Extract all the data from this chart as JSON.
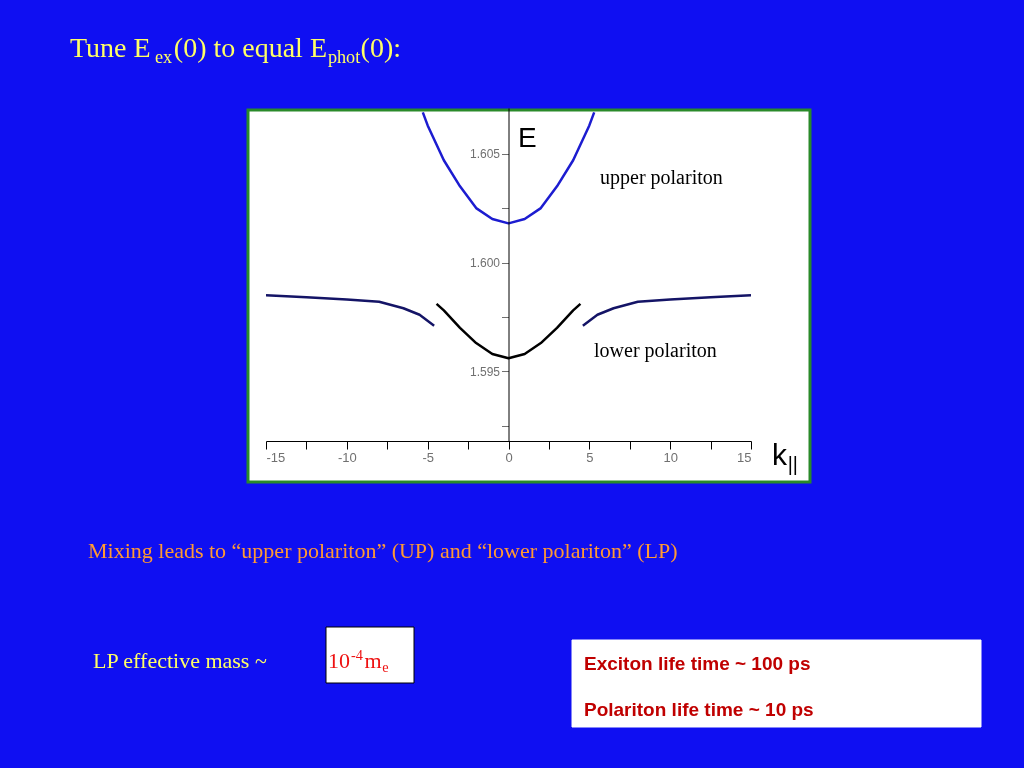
{
  "chart_data": {
    "type": "line",
    "title": "Tune E$_{ex}$(0) to equal E$_{phot}$(0):",
    "xlabel": "k$_{||}$",
    "ylabel": "E",
    "xlim": [
      -15,
      15
    ],
    "ylim": [
      1.5918,
      1.6071
    ],
    "xticks": [
      -15,
      {
        "value": -12.5,
        "label": null
      },
      -10,
      {
        "value": -7.5,
        "label": null
      },
      -5,
      {
        "value": -2.5,
        "label": null
      },
      0,
      {
        "value": 2.5,
        "label": null
      },
      5,
      {
        "value": 7.5,
        "label": null
      },
      10,
      {
        "value": 12.5,
        "label": null
      },
      15
    ],
    "yticks": [
      {
        "value": 1.5925,
        "label": null
      },
      {
        "value": 1.595,
        "label": "1.595"
      },
      {
        "value": 1.5975,
        "label": null
      },
      {
        "value": 1.6,
        "label": "1.600"
      },
      {
        "value": 1.6025,
        "label": null
      },
      {
        "value": 1.605,
        "label": "1.605"
      }
    ],
    "grid": false,
    "series": [
      {
        "name": "upper polariton",
        "color": "#1c1cd0",
        "x": [
          -5.3,
          -5,
          -4,
          -3,
          -2,
          -1,
          0,
          1,
          2,
          3,
          4,
          5,
          5.3
        ],
        "values": [
          1.6069,
          1.6063,
          1.6047,
          1.6035,
          1.6025,
          1.602,
          1.6018,
          1.602,
          1.6025,
          1.6035,
          1.6047,
          1.6063,
          1.6069
        ]
      },
      {
        "name": "lower polariton",
        "color": "#000000",
        "x": [
          -4.45,
          -4,
          -3,
          -2,
          -1,
          0,
          1,
          2,
          3,
          4,
          4.45
        ],
        "values": [
          1.5981,
          1.5978,
          1.597,
          1.5963,
          1.5958,
          1.5956,
          1.5958,
          1.5963,
          1.597,
          1.5978,
          1.5981
        ]
      },
      {
        "color": "#141466",
        "x": [
          -15,
          -12.5,
          -10,
          -8,
          -6.5,
          -5.5,
          -4.6,
          0,
          4.6,
          5.5,
          6.5,
          8,
          10,
          12.5,
          15
        ],
        "values": [
          1.5985,
          1.5984,
          1.5983,
          1.5982,
          1.5979,
          1.5976,
          1.5971,
          null,
          1.5971,
          1.5976,
          1.5979,
          1.5982,
          1.5983,
          1.5984,
          1.5985
        ]
      }
    ],
    "annotations": [
      "Mixing  leads to “upper polariton” (UP) and “lower polariton” (LP)",
      "LP effective mass ~",
      "10$^{-4}$m$_{e}$",
      "Exciton life time ~ 100 ps",
      "Polariton life time ~ 10 ps"
    ]
  }
}
